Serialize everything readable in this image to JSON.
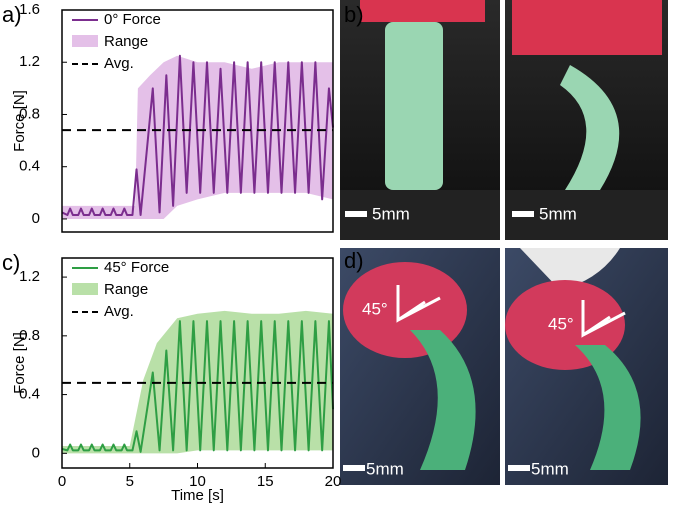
{
  "chart_data": [
    {
      "type": "line",
      "panel_label": "a)",
      "ylabel": "Force [N]",
      "xlim": [
        0,
        20
      ],
      "ylim": [
        -0.1,
        1.6
      ],
      "yticks": [
        0,
        0.4,
        0.8,
        1.2,
        1.6
      ],
      "x": [
        0,
        0.4,
        0.6,
        0.8,
        1.2,
        1.4,
        1.6,
        2.0,
        2.2,
        2.4,
        2.8,
        3.0,
        3.2,
        3.6,
        3.8,
        4.0,
        4.4,
        4.6,
        4.8,
        5.2,
        5.5,
        5.8,
        6.7,
        7.2,
        7.7,
        8.2,
        8.7,
        9.2,
        9.7,
        10.2,
        10.7,
        11.2,
        11.7,
        12.2,
        12.7,
        13.2,
        13.7,
        14.2,
        14.7,
        15.2,
        15.7,
        16.2,
        16.7,
        17.2,
        17.7,
        18.2,
        18.7,
        19.2,
        19.7,
        20
      ],
      "series": [
        {
          "name": "0° Force",
          "color": "#7b2d8e",
          "values": [
            0.05,
            0.03,
            0.08,
            0.03,
            0.03,
            0.08,
            0.03,
            0.03,
            0.08,
            0.03,
            0.03,
            0.08,
            0.03,
            0.03,
            0.08,
            0.03,
            0.03,
            0.08,
            0.03,
            0.03,
            0.38,
            0.03,
            1.0,
            0.05,
            1.1,
            0.1,
            1.25,
            0.2,
            1.2,
            0.2,
            1.2,
            0.2,
            1.15,
            0.2,
            1.2,
            0.2,
            1.2,
            0.2,
            1.2,
            0.2,
            1.2,
            0.2,
            1.2,
            0.2,
            1.2,
            0.2,
            1.2,
            0.15,
            1.0,
            0.7
          ]
        },
        {
          "name": "Range",
          "color": "#e4c0e8",
          "range_x": [
            0,
            5.4,
            5.6,
            6.5,
            7.5,
            8.5,
            10,
            12,
            14,
            16,
            18,
            20
          ],
          "upper": [
            0.1,
            0.1,
            1.0,
            1.1,
            1.2,
            1.25,
            1.2,
            1.2,
            1.15,
            1.2,
            1.2,
            1.2
          ],
          "lower": [
            0,
            0,
            0,
            0,
            0,
            0.1,
            0.15,
            0.2,
            0.2,
            0.2,
            0.2,
            0.15
          ]
        }
      ],
      "avg": {
        "name": "Avg.",
        "value": 0.68
      }
    },
    {
      "type": "line",
      "panel_label": "c)",
      "ylabel": "Force [N]",
      "xlabel": "Time [s]",
      "xlim": [
        0,
        20
      ],
      "xticks": [
        0,
        5,
        10,
        15,
        20
      ],
      "ylim": [
        -0.1,
        1.33
      ],
      "yticks": [
        0,
        0.4,
        0.8,
        1.2
      ],
      "x": [
        0,
        0.4,
        0.6,
        0.8,
        1.2,
        1.4,
        1.6,
        2.0,
        2.2,
        2.4,
        2.8,
        3.0,
        3.2,
        3.6,
        3.8,
        4.0,
        4.4,
        4.6,
        4.8,
        5.2,
        5.5,
        5.8,
        6.7,
        7.2,
        7.7,
        8.2,
        8.7,
        9.2,
        9.7,
        10.2,
        10.7,
        11.2,
        11.7,
        12.2,
        12.7,
        13.2,
        13.7,
        14.2,
        14.7,
        15.2,
        15.7,
        16.2,
        16.7,
        17.2,
        17.7,
        18.2,
        18.7,
        19.2,
        19.7,
        20
      ],
      "series": [
        {
          "name": "45° Force",
          "color": "#2e9e44",
          "values": [
            0.03,
            0.02,
            0.06,
            0.02,
            0.02,
            0.06,
            0.02,
            0.02,
            0.06,
            0.02,
            0.02,
            0.06,
            0.02,
            0.02,
            0.06,
            0.02,
            0.02,
            0.06,
            0.02,
            0.02,
            0.15,
            0.01,
            0.55,
            0.02,
            0.7,
            0.02,
            0.9,
            0.02,
            0.9,
            0.02,
            0.9,
            0.02,
            0.9,
            0.02,
            0.9,
            0.02,
            0.9,
            0.02,
            0.9,
            0.02,
            0.9,
            0.02,
            0.9,
            0.02,
            0.9,
            0.02,
            0.9,
            0.02,
            0.9,
            0.3
          ]
        },
        {
          "name": "Range",
          "color": "#b9e0a8",
          "range_x": [
            0,
            5,
            6,
            7,
            8.5,
            10,
            12,
            14,
            16,
            18,
            20
          ],
          "upper": [
            0.05,
            0.05,
            0.5,
            0.75,
            0.92,
            0.95,
            0.97,
            0.95,
            0.95,
            0.97,
            0.95
          ],
          "lower": [
            0,
            0,
            0,
            0,
            0,
            0.02,
            0.02,
            0.02,
            0.02,
            0.02,
            0.02
          ]
        }
      ],
      "avg": {
        "name": "Avg.",
        "value": 0.48
      }
    }
  ],
  "photos": {
    "b": {
      "label": "b)",
      "scale": "5mm"
    },
    "d": {
      "label": "d)",
      "scale": "5mm",
      "angle": "45°"
    }
  }
}
